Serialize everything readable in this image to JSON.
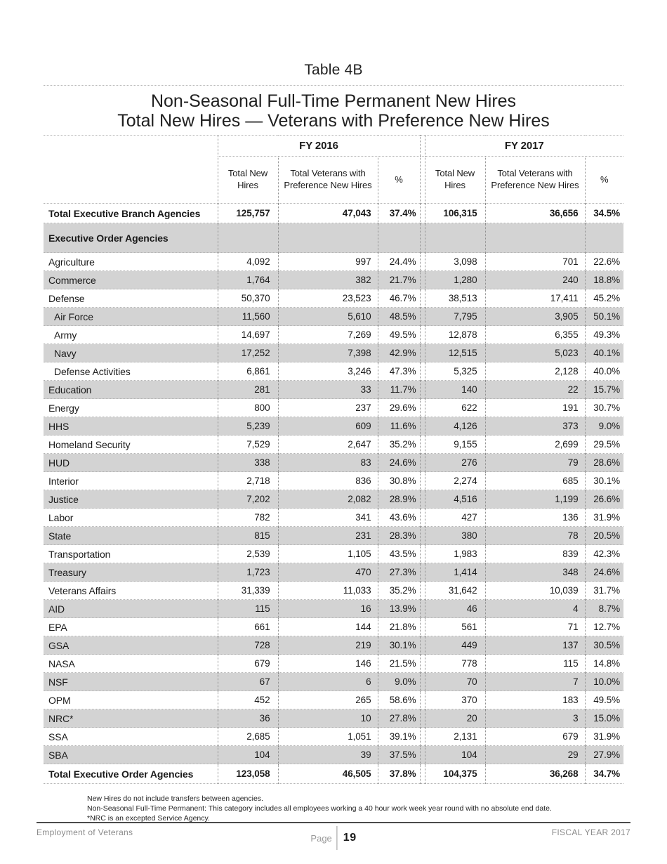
{
  "page": {
    "title": "Table 4B",
    "subtitle_line1": "Non-Seasonal Full-Time Permanent New Hires",
    "subtitle_line2": "Total New Hires — Veterans with Preference New Hires"
  },
  "table": {
    "group_headers": [
      "FY 2016",
      "FY 2017"
    ],
    "column_headers": [
      "Total New Hires",
      "Total Veterans with Preference New Hires",
      "%"
    ],
    "rows": [
      {
        "label": "Total Executive Branch Agencies",
        "style": "total",
        "shade": false,
        "indent": false,
        "values": [
          "125,757",
          "47,043",
          "37.4%",
          "106,315",
          "36,656",
          "34.5%"
        ]
      },
      {
        "label": "Executive Order Agencies",
        "style": "section",
        "shade": true,
        "indent": false,
        "values": [
          "",
          "",
          "",
          "",
          "",
          ""
        ]
      },
      {
        "label": "Agriculture",
        "style": "normal",
        "shade": false,
        "indent": false,
        "values": [
          "4,092",
          "997",
          "24.4%",
          "3,098",
          "701",
          "22.6%"
        ]
      },
      {
        "label": "Commerce",
        "style": "normal",
        "shade": true,
        "indent": false,
        "values": [
          "1,764",
          "382",
          "21.7%",
          "1,280",
          "240",
          "18.8%"
        ]
      },
      {
        "label": "Defense",
        "style": "normal",
        "shade": false,
        "indent": false,
        "values": [
          "50,370",
          "23,523",
          "46.7%",
          "38,513",
          "17,411",
          "45.2%"
        ]
      },
      {
        "label": "Air Force",
        "style": "normal",
        "shade": true,
        "indent": true,
        "values": [
          "11,560",
          "5,610",
          "48.5%",
          "7,795",
          "3,905",
          "50.1%"
        ]
      },
      {
        "label": "Army",
        "style": "normal",
        "shade": false,
        "indent": true,
        "values": [
          "14,697",
          "7,269",
          "49.5%",
          "12,878",
          "6,355",
          "49.3%"
        ]
      },
      {
        "label": "Navy",
        "style": "normal",
        "shade": true,
        "indent": true,
        "values": [
          "17,252",
          "7,398",
          "42.9%",
          "12,515",
          "5,023",
          "40.1%"
        ]
      },
      {
        "label": "Defense Activities",
        "style": "normal",
        "shade": false,
        "indent": true,
        "values": [
          "6,861",
          "3,246",
          "47.3%",
          "5,325",
          "2,128",
          "40.0%"
        ]
      },
      {
        "label": "Education",
        "style": "normal",
        "shade": true,
        "indent": false,
        "values": [
          "281",
          "33",
          "11.7%",
          "140",
          "22",
          "15.7%"
        ]
      },
      {
        "label": "Energy",
        "style": "normal",
        "shade": false,
        "indent": false,
        "values": [
          "800",
          "237",
          "29.6%",
          "622",
          "191",
          "30.7%"
        ]
      },
      {
        "label": "HHS",
        "style": "normal",
        "shade": true,
        "indent": false,
        "values": [
          "5,239",
          "609",
          "11.6%",
          "4,126",
          "373",
          "9.0%"
        ]
      },
      {
        "label": "Homeland Security",
        "style": "normal",
        "shade": false,
        "indent": false,
        "values": [
          "7,529",
          "2,647",
          "35.2%",
          "9,155",
          "2,699",
          "29.5%"
        ]
      },
      {
        "label": "HUD",
        "style": "normal",
        "shade": true,
        "indent": false,
        "values": [
          "338",
          "83",
          "24.6%",
          "276",
          "79",
          "28.6%"
        ]
      },
      {
        "label": "Interior",
        "style": "normal",
        "shade": false,
        "indent": false,
        "values": [
          "2,718",
          "836",
          "30.8%",
          "2,274",
          "685",
          "30.1%"
        ]
      },
      {
        "label": "Justice",
        "style": "normal",
        "shade": true,
        "indent": false,
        "values": [
          "7,202",
          "2,082",
          "28.9%",
          "4,516",
          "1,199",
          "26.6%"
        ]
      },
      {
        "label": "Labor",
        "style": "normal",
        "shade": false,
        "indent": false,
        "values": [
          "782",
          "341",
          "43.6%",
          "427",
          "136",
          "31.9%"
        ]
      },
      {
        "label": "State",
        "style": "normal",
        "shade": true,
        "indent": false,
        "values": [
          "815",
          "231",
          "28.3%",
          "380",
          "78",
          "20.5%"
        ]
      },
      {
        "label": "Transportation",
        "style": "normal",
        "shade": false,
        "indent": false,
        "values": [
          "2,539",
          "1,105",
          "43.5%",
          "1,983",
          "839",
          "42.3%"
        ]
      },
      {
        "label": "Treasury",
        "style": "normal",
        "shade": true,
        "indent": false,
        "values": [
          "1,723",
          "470",
          "27.3%",
          "1,414",
          "348",
          "24.6%"
        ]
      },
      {
        "label": "Veterans Affairs",
        "style": "normal",
        "shade": false,
        "indent": false,
        "values": [
          "31,339",
          "11,033",
          "35.2%",
          "31,642",
          "10,039",
          "31.7%"
        ]
      },
      {
        "label": "AID",
        "style": "normal",
        "shade": true,
        "indent": false,
        "values": [
          "115",
          "16",
          "13.9%",
          "46",
          "4",
          "8.7%"
        ]
      },
      {
        "label": "EPA",
        "style": "normal",
        "shade": false,
        "indent": false,
        "values": [
          "661",
          "144",
          "21.8%",
          "561",
          "71",
          "12.7%"
        ]
      },
      {
        "label": "GSA",
        "style": "normal",
        "shade": true,
        "indent": false,
        "values": [
          "728",
          "219",
          "30.1%",
          "449",
          "137",
          "30.5%"
        ]
      },
      {
        "label": "NASA",
        "style": "normal",
        "shade": false,
        "indent": false,
        "values": [
          "679",
          "146",
          "21.5%",
          "778",
          "115",
          "14.8%"
        ]
      },
      {
        "label": "NSF",
        "style": "normal",
        "shade": true,
        "indent": false,
        "values": [
          "67",
          "6",
          "9.0%",
          "70",
          "7",
          "10.0%"
        ]
      },
      {
        "label": "OPM",
        "style": "normal",
        "shade": false,
        "indent": false,
        "values": [
          "452",
          "265",
          "58.6%",
          "370",
          "183",
          "49.5%"
        ]
      },
      {
        "label": "NRC*",
        "style": "normal",
        "shade": true,
        "indent": false,
        "values": [
          "36",
          "10",
          "27.8%",
          "20",
          "3",
          "15.0%"
        ]
      },
      {
        "label": "SSA",
        "style": "normal",
        "shade": false,
        "indent": false,
        "values": [
          "2,685",
          "1,051",
          "39.1%",
          "2,131",
          "679",
          "31.9%"
        ]
      },
      {
        "label": "SBA",
        "style": "normal",
        "shade": true,
        "indent": false,
        "values": [
          "104",
          "39",
          "37.5%",
          "104",
          "29",
          "27.9%"
        ]
      },
      {
        "label": "Total Executive Order Agencies",
        "style": "total",
        "shade": false,
        "indent": false,
        "values": [
          "123,058",
          "46,505",
          "37.8%",
          "104,375",
          "36,268",
          "34.7%"
        ]
      }
    ]
  },
  "footnotes": [
    "New Hires do not include transfers between agencies.",
    "Non-Seasonal Full-Time Permanent: This category includes all employees working a 40 hour work week year round with no absolute end date.",
    "*NRC is an excepted Service Agency."
  ],
  "footer": {
    "left": "Employment of Veterans",
    "page_label": "Page",
    "page_number": "19",
    "right": "FISCAL YEAR 2017"
  },
  "colors": {
    "stripe": "#d3d3d3",
    "text": "#1a1a1a",
    "muted_footer": "#8a8a8a",
    "dotted_line": "#b3b3b3"
  }
}
